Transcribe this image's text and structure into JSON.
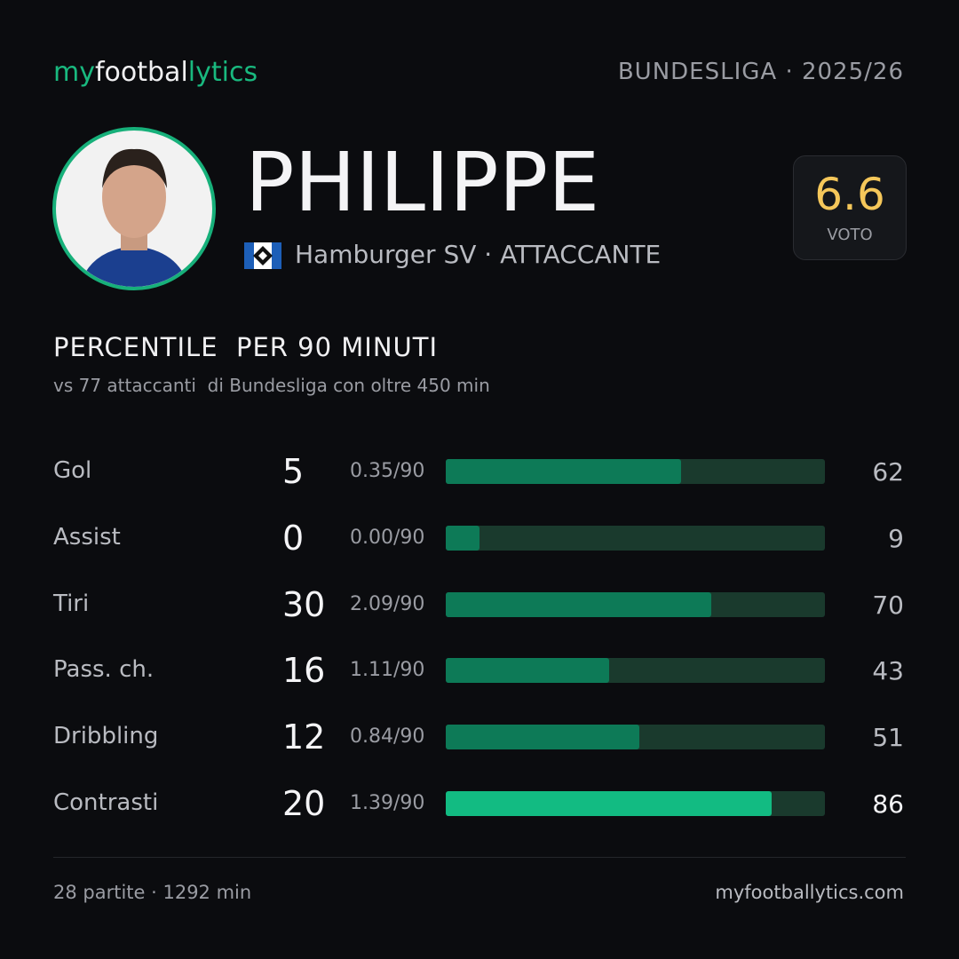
{
  "header": {
    "brand": [
      "my",
      "footbal",
      "lytics"
    ],
    "league": "BUNDESLIGA · 2025/26"
  },
  "player": {
    "name": "PHILIPPE",
    "team": "Hamburger SV · ATTACCANTE",
    "rating": 6.6,
    "rating_label": "VOTO"
  },
  "section": {
    "title": "PERCENTILE  PER 90 MINUTI",
    "subtitle": "vs 77 attaccanti  di Bundesliga con oltre 450 min"
  },
  "stats": {
    "percentile_range": [
      0,
      100
    ],
    "bar_color": "#0d7a57",
    "track_color": "#1a3a2d",
    "highlight_color": "#12bb82",
    "rows": [
      {
        "label": "Gol",
        "total": 5,
        "per90": "0.35/90",
        "percentile": 62,
        "highlight": false
      },
      {
        "label": "Assist",
        "total": 0,
        "per90": "0.00/90",
        "percentile": 9,
        "highlight": false
      },
      {
        "label": "Tiri",
        "total": 30,
        "per90": "2.09/90",
        "percentile": 70,
        "highlight": false
      },
      {
        "label": "Pass. ch.",
        "total": 16,
        "per90": "1.11/90",
        "percentile": 43,
        "highlight": false
      },
      {
        "label": "Dribbling",
        "total": 12,
        "per90": "0.84/90",
        "percentile": 51,
        "highlight": false
      },
      {
        "label": "Contrasti",
        "total": 20,
        "per90": "1.39/90",
        "percentile": 86,
        "highlight": true
      }
    ]
  },
  "footer": {
    "left": "28 partite · 1292 min",
    "right": "myfootballytics.com"
  }
}
